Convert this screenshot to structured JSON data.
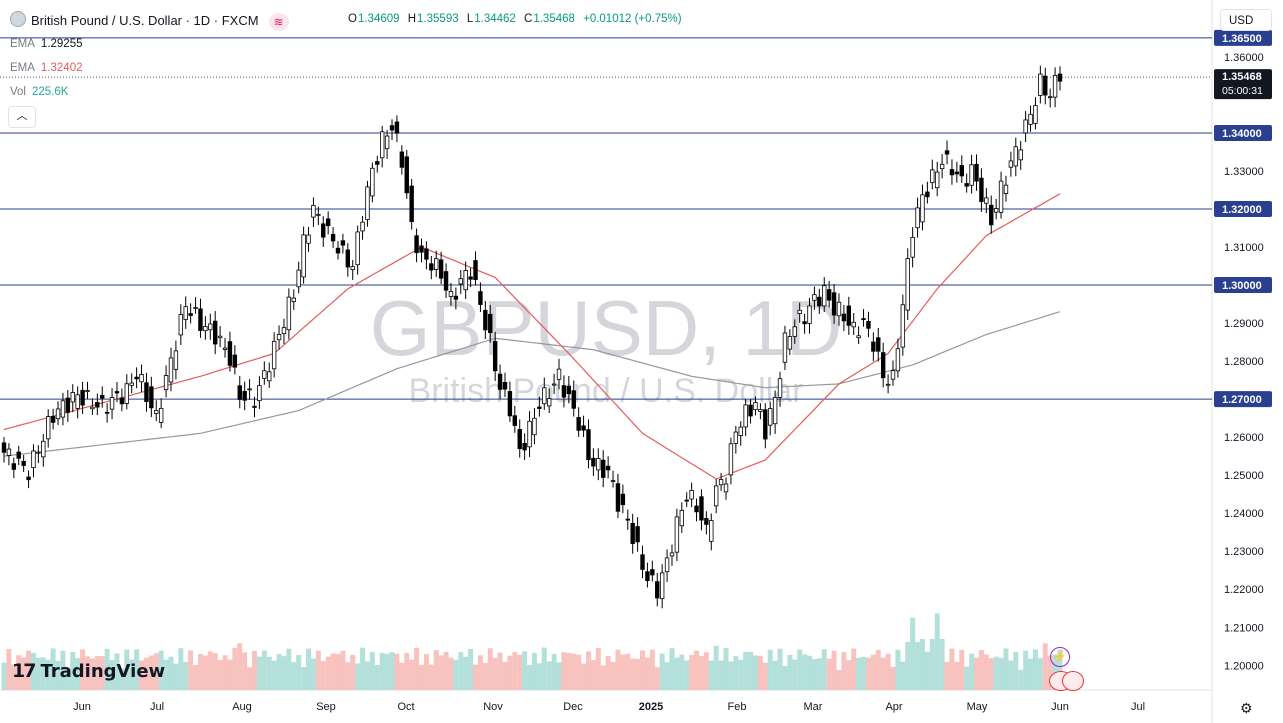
{
  "header": {
    "title": "British Pound / U.S. Dollar · 1D · FXCM",
    "currency_button": "USD"
  },
  "ohlc": {
    "o_label": "O",
    "o": "1.34609",
    "h_label": "H",
    "h": "1.35593",
    "l_label": "L",
    "l": "1.34462",
    "c_label": "C",
    "c": "1.35468",
    "change": "+0.01012 (+0.75%)"
  },
  "indicators": [
    {
      "label": "EMA",
      "value": "1.29255",
      "color": "#787b86"
    },
    {
      "label": "EMA",
      "value": "1.32402",
      "color": "#e25c5c"
    },
    {
      "label": "Vol",
      "value": "225.6K",
      "color": "#26a69a"
    }
  ],
  "watermark": {
    "symbol": "GBPUSD, 1D",
    "name": "British Pound / U.S. Dollar"
  },
  "branding": {
    "logo_text": "TradingView"
  },
  "colors": {
    "up": "#089981",
    "down": "#f23645",
    "candle": "#000000",
    "ema_fast": "#e25c5c",
    "ema_slow": "#9598a1",
    "hline": "#2a3f8f",
    "price_tag": "#131722",
    "vol_up": "#a7dbd6",
    "vol_down": "#f7b8b4"
  },
  "chart_data": {
    "type": "candlestick",
    "ylim": [
      1.1935,
      1.3655
    ],
    "y_ticks": [
      "1.36000",
      "1.35000",
      "1.34000",
      "1.33000",
      "1.32000",
      "1.31000",
      "1.30000",
      "1.29000",
      "1.28000",
      "1.27000",
      "1.26000",
      "1.25000",
      "1.24000",
      "1.23000",
      "1.22000",
      "1.21000",
      "1.20000"
    ],
    "x_ticks": [
      "Jun",
      "Jul",
      "Aug",
      "Sep",
      "Oct",
      "Nov",
      "Dec",
      "2025",
      "Feb",
      "Mar",
      "Apr",
      "May",
      "Jun",
      "Jul"
    ],
    "horizontal_levels": [
      "1.36500",
      "1.34000",
      "1.32000",
      "1.30000",
      "1.27000"
    ],
    "current_price": "1.35468",
    "countdown": "05:00:31",
    "close_path": [
      [
        0,
        1.256
      ],
      [
        5,
        1.251
      ],
      [
        10,
        1.266
      ],
      [
        15,
        1.271
      ],
      [
        20,
        1.268
      ],
      [
        25,
        1.272
      ],
      [
        27,
        1.277
      ],
      [
        31,
        1.265
      ],
      [
        34,
        1.28
      ],
      [
        37,
        1.295
      ],
      [
        40,
        1.29
      ],
      [
        43,
        1.287
      ],
      [
        46,
        1.281
      ],
      [
        48,
        1.271
      ],
      [
        51,
        1.27
      ],
      [
        53,
        1.276
      ],
      [
        56,
        1.287
      ],
      [
        59,
        1.298
      ],
      [
        61,
        1.311
      ],
      [
        63,
        1.32
      ],
      [
        65,
        1.315
      ],
      [
        67,
        1.312
      ],
      [
        69,
        1.308
      ],
      [
        71,
        1.305
      ],
      [
        73,
        1.319
      ],
      [
        75,
        1.33
      ],
      [
        77,
        1.338
      ],
      [
        79,
        1.342
      ],
      [
        81,
        1.333
      ],
      [
        83,
        1.315
      ],
      [
        85,
        1.307
      ],
      [
        87,
        1.306
      ],
      [
        89,
        1.303
      ],
      [
        91,
        1.296
      ],
      [
        93,
        1.301
      ],
      [
        95,
        1.304
      ],
      [
        97,
        1.295
      ],
      [
        99,
        1.285
      ],
      [
        101,
        1.273
      ],
      [
        103,
        1.268
      ],
      [
        105,
        1.256
      ],
      [
        107,
        1.262
      ],
      [
        109,
        1.269
      ],
      [
        111,
        1.272
      ],
      [
        113,
        1.276
      ],
      [
        115,
        1.27
      ],
      [
        117,
        1.264
      ],
      [
        119,
        1.255
      ],
      [
        121,
        1.252
      ],
      [
        123,
        1.251
      ],
      [
        125,
        1.243
      ],
      [
        127,
        1.238
      ],
      [
        129,
        1.23
      ],
      [
        131,
        1.223
      ],
      [
        133,
        1.22
      ],
      [
        135,
        1.227
      ],
      [
        137,
        1.237
      ],
      [
        139,
        1.245
      ],
      [
        141,
        1.242
      ],
      [
        143,
        1.235
      ],
      [
        145,
        1.246
      ],
      [
        147,
        1.25
      ],
      [
        149,
        1.262
      ],
      [
        151,
        1.266
      ],
      [
        153,
        1.269
      ],
      [
        155,
        1.262
      ],
      [
        157,
        1.27
      ],
      [
        159,
        1.285
      ],
      [
        161,
        1.29
      ],
      [
        163,
        1.292
      ],
      [
        165,
        1.296
      ],
      [
        167,
        1.298
      ],
      [
        169,
        1.294
      ],
      [
        171,
        1.292
      ],
      [
        173,
        1.288
      ],
      [
        175,
        1.29
      ],
      [
        177,
        1.285
      ],
      [
        179,
        1.276
      ],
      [
        181,
        1.275
      ],
      [
        183,
        1.295
      ],
      [
        185,
        1.315
      ],
      [
        187,
        1.323
      ],
      [
        189,
        1.328
      ],
      [
        191,
        1.333
      ],
      [
        193,
        1.331
      ],
      [
        195,
        1.327
      ],
      [
        197,
        1.33
      ],
      [
        199,
        1.324
      ],
      [
        201,
        1.317
      ],
      [
        203,
        1.325
      ],
      [
        205,
        1.332
      ],
      [
        207,
        1.338
      ],
      [
        209,
        1.345
      ],
      [
        211,
        1.353
      ],
      [
        213,
        1.35
      ],
      [
        215,
        1.356
      ]
    ],
    "ema_fast_path": [
      [
        0,
        1.262
      ],
      [
        20,
        1.269
      ],
      [
        40,
        1.276
      ],
      [
        55,
        1.282
      ],
      [
        70,
        1.299
      ],
      [
        85,
        1.31
      ],
      [
        100,
        1.302
      ],
      [
        115,
        1.282
      ],
      [
        130,
        1.261
      ],
      [
        145,
        1.249
      ],
      [
        155,
        1.254
      ],
      [
        170,
        1.274
      ],
      [
        180,
        1.282
      ],
      [
        190,
        1.299
      ],
      [
        200,
        1.313
      ],
      [
        215,
        1.324
      ]
    ],
    "ema_slow_path": [
      [
        0,
        1.255
      ],
      [
        20,
        1.258
      ],
      [
        40,
        1.261
      ],
      [
        60,
        1.267
      ],
      [
        80,
        1.278
      ],
      [
        100,
        1.286
      ],
      [
        120,
        1.283
      ],
      [
        140,
        1.276
      ],
      [
        155,
        1.273
      ],
      [
        170,
        1.274
      ],
      [
        185,
        1.279
      ],
      [
        200,
        1.287
      ],
      [
        215,
        1.293
      ]
    ],
    "vol_spikes": [
      [
        48,
        0.55
      ],
      [
        99,
        0.48
      ],
      [
        145,
        0.52
      ],
      [
        185,
        0.85
      ],
      [
        187,
        0.6
      ],
      [
        190,
        0.9
      ],
      [
        212,
        0.55
      ]
    ]
  }
}
